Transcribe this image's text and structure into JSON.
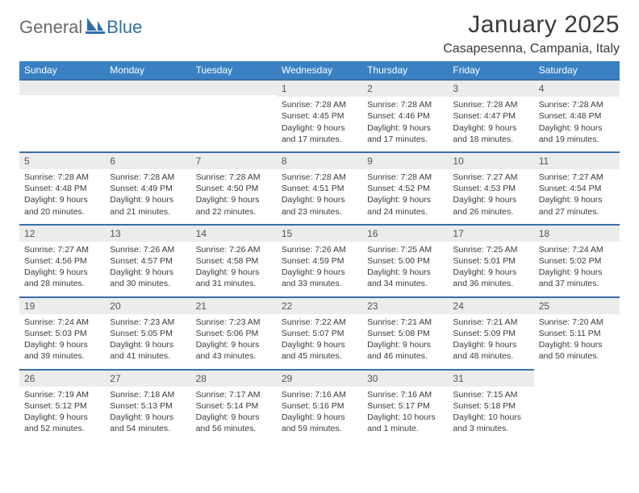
{
  "logo": {
    "general": "General",
    "blue": "Blue"
  },
  "title": "January 2025",
  "location": "Casapesenna, Campania, Italy",
  "colors": {
    "header_bg": "#3a81c4",
    "header_text": "#ffffff",
    "daynum_bg": "#ececec",
    "rule": "#3a6fa5",
    "body_text": "#3a3a3a",
    "logo_gray": "#6a6a6a",
    "logo_blue": "#2f6fa8"
  },
  "weekdays": [
    "Sunday",
    "Monday",
    "Tuesday",
    "Wednesday",
    "Thursday",
    "Friday",
    "Saturday"
  ],
  "weeks": [
    [
      null,
      null,
      null,
      {
        "n": "1",
        "sr": "Sunrise: 7:28 AM",
        "ss": "Sunset: 4:45 PM",
        "d1": "Daylight: 9 hours",
        "d2": "and 17 minutes."
      },
      {
        "n": "2",
        "sr": "Sunrise: 7:28 AM",
        "ss": "Sunset: 4:46 PM",
        "d1": "Daylight: 9 hours",
        "d2": "and 17 minutes."
      },
      {
        "n": "3",
        "sr": "Sunrise: 7:28 AM",
        "ss": "Sunset: 4:47 PM",
        "d1": "Daylight: 9 hours",
        "d2": "and 18 minutes."
      },
      {
        "n": "4",
        "sr": "Sunrise: 7:28 AM",
        "ss": "Sunset: 4:48 PM",
        "d1": "Daylight: 9 hours",
        "d2": "and 19 minutes."
      }
    ],
    [
      {
        "n": "5",
        "sr": "Sunrise: 7:28 AM",
        "ss": "Sunset: 4:48 PM",
        "d1": "Daylight: 9 hours",
        "d2": "and 20 minutes."
      },
      {
        "n": "6",
        "sr": "Sunrise: 7:28 AM",
        "ss": "Sunset: 4:49 PM",
        "d1": "Daylight: 9 hours",
        "d2": "and 21 minutes."
      },
      {
        "n": "7",
        "sr": "Sunrise: 7:28 AM",
        "ss": "Sunset: 4:50 PM",
        "d1": "Daylight: 9 hours",
        "d2": "and 22 minutes."
      },
      {
        "n": "8",
        "sr": "Sunrise: 7:28 AM",
        "ss": "Sunset: 4:51 PM",
        "d1": "Daylight: 9 hours",
        "d2": "and 23 minutes."
      },
      {
        "n": "9",
        "sr": "Sunrise: 7:28 AM",
        "ss": "Sunset: 4:52 PM",
        "d1": "Daylight: 9 hours",
        "d2": "and 24 minutes."
      },
      {
        "n": "10",
        "sr": "Sunrise: 7:27 AM",
        "ss": "Sunset: 4:53 PM",
        "d1": "Daylight: 9 hours",
        "d2": "and 26 minutes."
      },
      {
        "n": "11",
        "sr": "Sunrise: 7:27 AM",
        "ss": "Sunset: 4:54 PM",
        "d1": "Daylight: 9 hours",
        "d2": "and 27 minutes."
      }
    ],
    [
      {
        "n": "12",
        "sr": "Sunrise: 7:27 AM",
        "ss": "Sunset: 4:56 PM",
        "d1": "Daylight: 9 hours",
        "d2": "and 28 minutes."
      },
      {
        "n": "13",
        "sr": "Sunrise: 7:26 AM",
        "ss": "Sunset: 4:57 PM",
        "d1": "Daylight: 9 hours",
        "d2": "and 30 minutes."
      },
      {
        "n": "14",
        "sr": "Sunrise: 7:26 AM",
        "ss": "Sunset: 4:58 PM",
        "d1": "Daylight: 9 hours",
        "d2": "and 31 minutes."
      },
      {
        "n": "15",
        "sr": "Sunrise: 7:26 AM",
        "ss": "Sunset: 4:59 PM",
        "d1": "Daylight: 9 hours",
        "d2": "and 33 minutes."
      },
      {
        "n": "16",
        "sr": "Sunrise: 7:25 AM",
        "ss": "Sunset: 5:00 PM",
        "d1": "Daylight: 9 hours",
        "d2": "and 34 minutes."
      },
      {
        "n": "17",
        "sr": "Sunrise: 7:25 AM",
        "ss": "Sunset: 5:01 PM",
        "d1": "Daylight: 9 hours",
        "d2": "and 36 minutes."
      },
      {
        "n": "18",
        "sr": "Sunrise: 7:24 AM",
        "ss": "Sunset: 5:02 PM",
        "d1": "Daylight: 9 hours",
        "d2": "and 37 minutes."
      }
    ],
    [
      {
        "n": "19",
        "sr": "Sunrise: 7:24 AM",
        "ss": "Sunset: 5:03 PM",
        "d1": "Daylight: 9 hours",
        "d2": "and 39 minutes."
      },
      {
        "n": "20",
        "sr": "Sunrise: 7:23 AM",
        "ss": "Sunset: 5:05 PM",
        "d1": "Daylight: 9 hours",
        "d2": "and 41 minutes."
      },
      {
        "n": "21",
        "sr": "Sunrise: 7:23 AM",
        "ss": "Sunset: 5:06 PM",
        "d1": "Daylight: 9 hours",
        "d2": "and 43 minutes."
      },
      {
        "n": "22",
        "sr": "Sunrise: 7:22 AM",
        "ss": "Sunset: 5:07 PM",
        "d1": "Daylight: 9 hours",
        "d2": "and 45 minutes."
      },
      {
        "n": "23",
        "sr": "Sunrise: 7:21 AM",
        "ss": "Sunset: 5:08 PM",
        "d1": "Daylight: 9 hours",
        "d2": "and 46 minutes."
      },
      {
        "n": "24",
        "sr": "Sunrise: 7:21 AM",
        "ss": "Sunset: 5:09 PM",
        "d1": "Daylight: 9 hours",
        "d2": "and 48 minutes."
      },
      {
        "n": "25",
        "sr": "Sunrise: 7:20 AM",
        "ss": "Sunset: 5:11 PM",
        "d1": "Daylight: 9 hours",
        "d2": "and 50 minutes."
      }
    ],
    [
      {
        "n": "26",
        "sr": "Sunrise: 7:19 AM",
        "ss": "Sunset: 5:12 PM",
        "d1": "Daylight: 9 hours",
        "d2": "and 52 minutes."
      },
      {
        "n": "27",
        "sr": "Sunrise: 7:18 AM",
        "ss": "Sunset: 5:13 PM",
        "d1": "Daylight: 9 hours",
        "d2": "and 54 minutes."
      },
      {
        "n": "28",
        "sr": "Sunrise: 7:17 AM",
        "ss": "Sunset: 5:14 PM",
        "d1": "Daylight: 9 hours",
        "d2": "and 56 minutes."
      },
      {
        "n": "29",
        "sr": "Sunrise: 7:16 AM",
        "ss": "Sunset: 5:16 PM",
        "d1": "Daylight: 9 hours",
        "d2": "and 59 minutes."
      },
      {
        "n": "30",
        "sr": "Sunrise: 7:16 AM",
        "ss": "Sunset: 5:17 PM",
        "d1": "Daylight: 10 hours",
        "d2": "and 1 minute."
      },
      {
        "n": "31",
        "sr": "Sunrise: 7:15 AM",
        "ss": "Sunset: 5:18 PM",
        "d1": "Daylight: 10 hours",
        "d2": "and 3 minutes."
      },
      null
    ]
  ]
}
